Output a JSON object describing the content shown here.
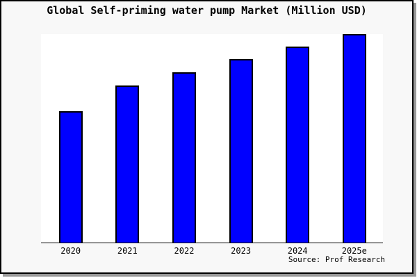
{
  "window": {
    "background": "#f8f8f8",
    "plot_background": "#ffffff",
    "frame_border_color": "#000000",
    "shadow_color": "#999999"
  },
  "chart": {
    "title": "Global Self-priming water pump Market (Million USD)",
    "source": "Source: Prof Research"
  },
  "chart_data": {
    "type": "bar",
    "title": "Global Self-priming water pump Market (Million USD)",
    "categories": [
      "2020",
      "2021",
      "2022",
      "2023",
      "2024",
      "2025e"
    ],
    "values": [
      63,
      75.3,
      81.7,
      88,
      94,
      100
    ],
    "values_unit": "relative height, % of tallest bar (no y-axis scale shown)",
    "xlabel": "",
    "ylabel": "",
    "ylim": [
      0,
      100
    ],
    "grid": false,
    "y_axis_visible": false,
    "legend": "none",
    "bar_color": "#0000ff",
    "bar_border_color": "#000000",
    "annotation": "Source: Prof Research"
  }
}
